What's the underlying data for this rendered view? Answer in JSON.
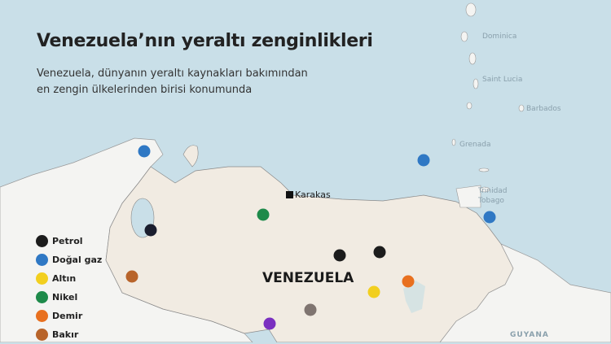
{
  "title": "Venezuela’nın yeraltı zenginlikleri",
  "subtitle": [
    "Venezuela, dünyanın yeraltı kaynakları bakımından",
    "en zengin ülkelerinden birisi konumunda"
  ],
  "colors": {
    "sea": "#c9dfe8",
    "venezuela": "#f1ebe2",
    "other_land": "#f4f4f2"
  },
  "legend": [
    {
      "label": "Petrol",
      "color": "#1c1c1c"
    },
    {
      "label": "Doğal gaz",
      "color": "#2f78c4"
    },
    {
      "label": "Altın",
      "color": "#f2cf1f"
    },
    {
      "label": "Nikel",
      "color": "#1e8a4a"
    },
    {
      "label": "Demir",
      "color": "#e8701f"
    },
    {
      "label": "Bakır",
      "color": "#b8642a"
    }
  ],
  "extra_marker_colors": [
    "#7f7470",
    "#7a2fc0"
  ],
  "labels": {
    "country": "VENEZUELA",
    "capital": "Karakas",
    "islands": [
      "Dominica",
      "Saint Lucia",
      "Barbados",
      "Grenada",
      "Trinidad",
      "Tobago"
    ],
    "neighbor": "GUYANA"
  }
}
